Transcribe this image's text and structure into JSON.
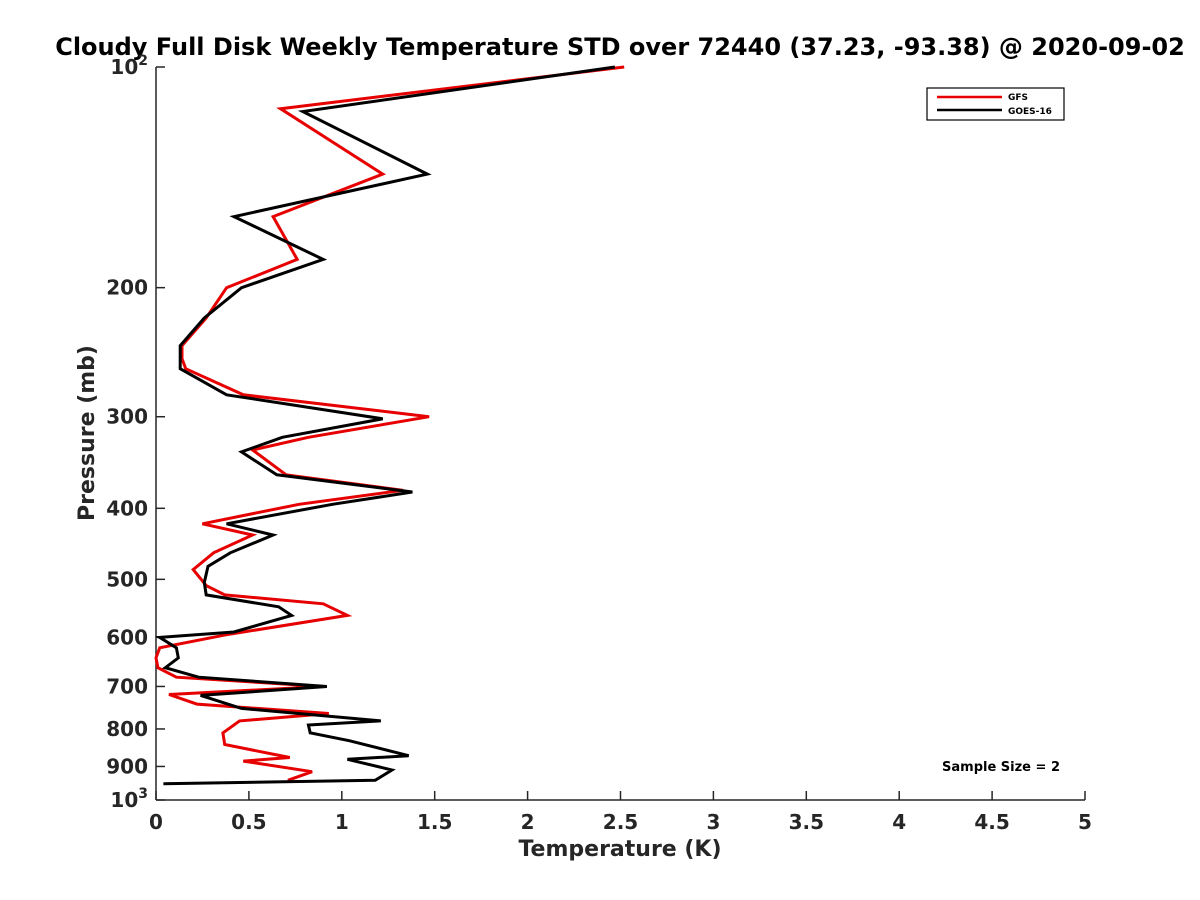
{
  "chart_data": {
    "type": "line",
    "title": "Cloudy Full Disk Weekly Temperature STD over 72440 (37.23, -93.38) @ 2020-09-02",
    "xlabel": "Temperature (K)",
    "ylabel": "Pressure (mb)",
    "xlim": [
      0,
      5
    ],
    "ylim": [
      100,
      1000
    ],
    "yscale": "log",
    "y_reversed": true,
    "x_ticks": [
      "0",
      "0.5",
      "1",
      "1.5",
      "2",
      "2.5",
      "3",
      "3.5",
      "4",
      "4.5",
      "5"
    ],
    "y_ticks": [
      {
        "value": 100,
        "base": "10",
        "exp": "2"
      },
      {
        "value": 200,
        "label": "200"
      },
      {
        "value": 300,
        "label": "300"
      },
      {
        "value": 400,
        "label": "400"
      },
      {
        "value": 500,
        "label": "500"
      },
      {
        "value": 600,
        "label": "600"
      },
      {
        "value": 700,
        "label": "700"
      },
      {
        "value": 800,
        "label": "800"
      },
      {
        "value": 900,
        "label": "900"
      },
      {
        "value": 1000,
        "base": "10",
        "exp": "3"
      }
    ],
    "grid": false,
    "legend_position": "top-right",
    "annotation": "Sample Size = 2",
    "series": [
      {
        "name": "GFS",
        "color": "#e60000",
        "x": [
          2.52,
          0.67,
          1.22,
          0.63,
          0.76,
          0.38,
          0.27,
          0.14,
          0.14,
          0.16,
          0.47,
          1.47,
          0.82,
          0.52,
          0.7,
          1.33,
          0.77,
          0.25,
          0.52,
          0.31,
          0.2,
          0.27,
          0.37,
          0.9,
          1.03,
          0.38,
          0.02,
          0.0,
          0.01,
          0.11,
          0.9,
          0.07,
          0.22,
          0.93,
          0.45,
          0.36,
          0.37,
          0.72,
          0.47,
          0.84,
          0.71
        ],
        "y": [
          100,
          114,
          140,
          160,
          183,
          200,
          220,
          240,
          250,
          258,
          280,
          300,
          320,
          333,
          360,
          378,
          395,
          420,
          435,
          460,
          485,
          510,
          525,
          540,
          560,
          595,
          620,
          640,
          660,
          680,
          700,
          718,
          740,
          762,
          780,
          810,
          840,
          875,
          885,
          915,
          940
        ]
      },
      {
        "name": "GOES-16",
        "color": "#000000",
        "x": [
          2.47,
          0.79,
          1.46,
          0.42,
          0.9,
          0.46,
          0.26,
          0.13,
          0.13,
          0.13,
          0.38,
          1.22,
          0.68,
          0.46,
          0.65,
          1.38,
          0.95,
          0.38,
          0.63,
          0.4,
          0.28,
          0.26,
          0.27,
          0.66,
          0.73,
          0.42,
          0.02,
          0.11,
          0.12,
          0.05,
          0.23,
          0.92,
          0.24,
          0.46,
          1.21,
          0.82,
          0.83,
          1.04,
          1.36,
          1.03,
          1.27,
          1.18,
          0.04
        ],
        "y": [
          100,
          115,
          140,
          160,
          183,
          200,
          220,
          240,
          250,
          258,
          280,
          302,
          320,
          335,
          360,
          380,
          395,
          420,
          435,
          460,
          480,
          505,
          525,
          545,
          560,
          590,
          600,
          620,
          640,
          660,
          680,
          700,
          720,
          750,
          780,
          790,
          810,
          830,
          870,
          880,
          910,
          940,
          950
        ]
      }
    ]
  }
}
